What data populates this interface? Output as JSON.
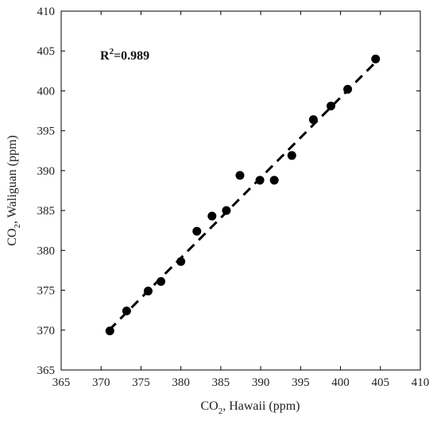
{
  "chart_data": {
    "type": "scatter",
    "xlabel": {
      "prefix": "CO",
      "sub": "2",
      "suffix": ", Hawaii (ppm)"
    },
    "ylabel": {
      "prefix": "CO",
      "sub": "2",
      "suffix": ", Waliguan (ppm)"
    },
    "xlim": [
      365,
      410
    ],
    "ylim": [
      365,
      410
    ],
    "xticks": [
      365,
      370,
      375,
      380,
      385,
      390,
      395,
      400,
      405,
      410
    ],
    "yticks": [
      365,
      370,
      375,
      380,
      385,
      390,
      395,
      400,
      405,
      410
    ],
    "grid": false,
    "annotation": {
      "prefix": "R",
      "sup": "2",
      "suffix": "=0.989"
    },
    "series": [
      {
        "type": "scatter",
        "color": "#000000",
        "points": [
          [
            371.1,
            369.9
          ],
          [
            373.2,
            372.4
          ],
          [
            375.9,
            374.9
          ],
          [
            377.5,
            376.1
          ],
          [
            380.0,
            378.6
          ],
          [
            382.0,
            382.4
          ],
          [
            383.9,
            384.3
          ],
          [
            385.7,
            385.0
          ],
          [
            387.4,
            389.4
          ],
          [
            389.9,
            388.8
          ],
          [
            391.7,
            388.8
          ],
          [
            393.9,
            391.9
          ],
          [
            396.6,
            396.4
          ],
          [
            398.8,
            398.1
          ],
          [
            400.9,
            400.2
          ],
          [
            404.4,
            404.0
          ]
        ]
      },
      {
        "type": "line",
        "style": "dashed",
        "color": "#000000",
        "points": [
          [
            371.0,
            370.0
          ],
          [
            404.4,
            403.6
          ]
        ]
      }
    ]
  }
}
